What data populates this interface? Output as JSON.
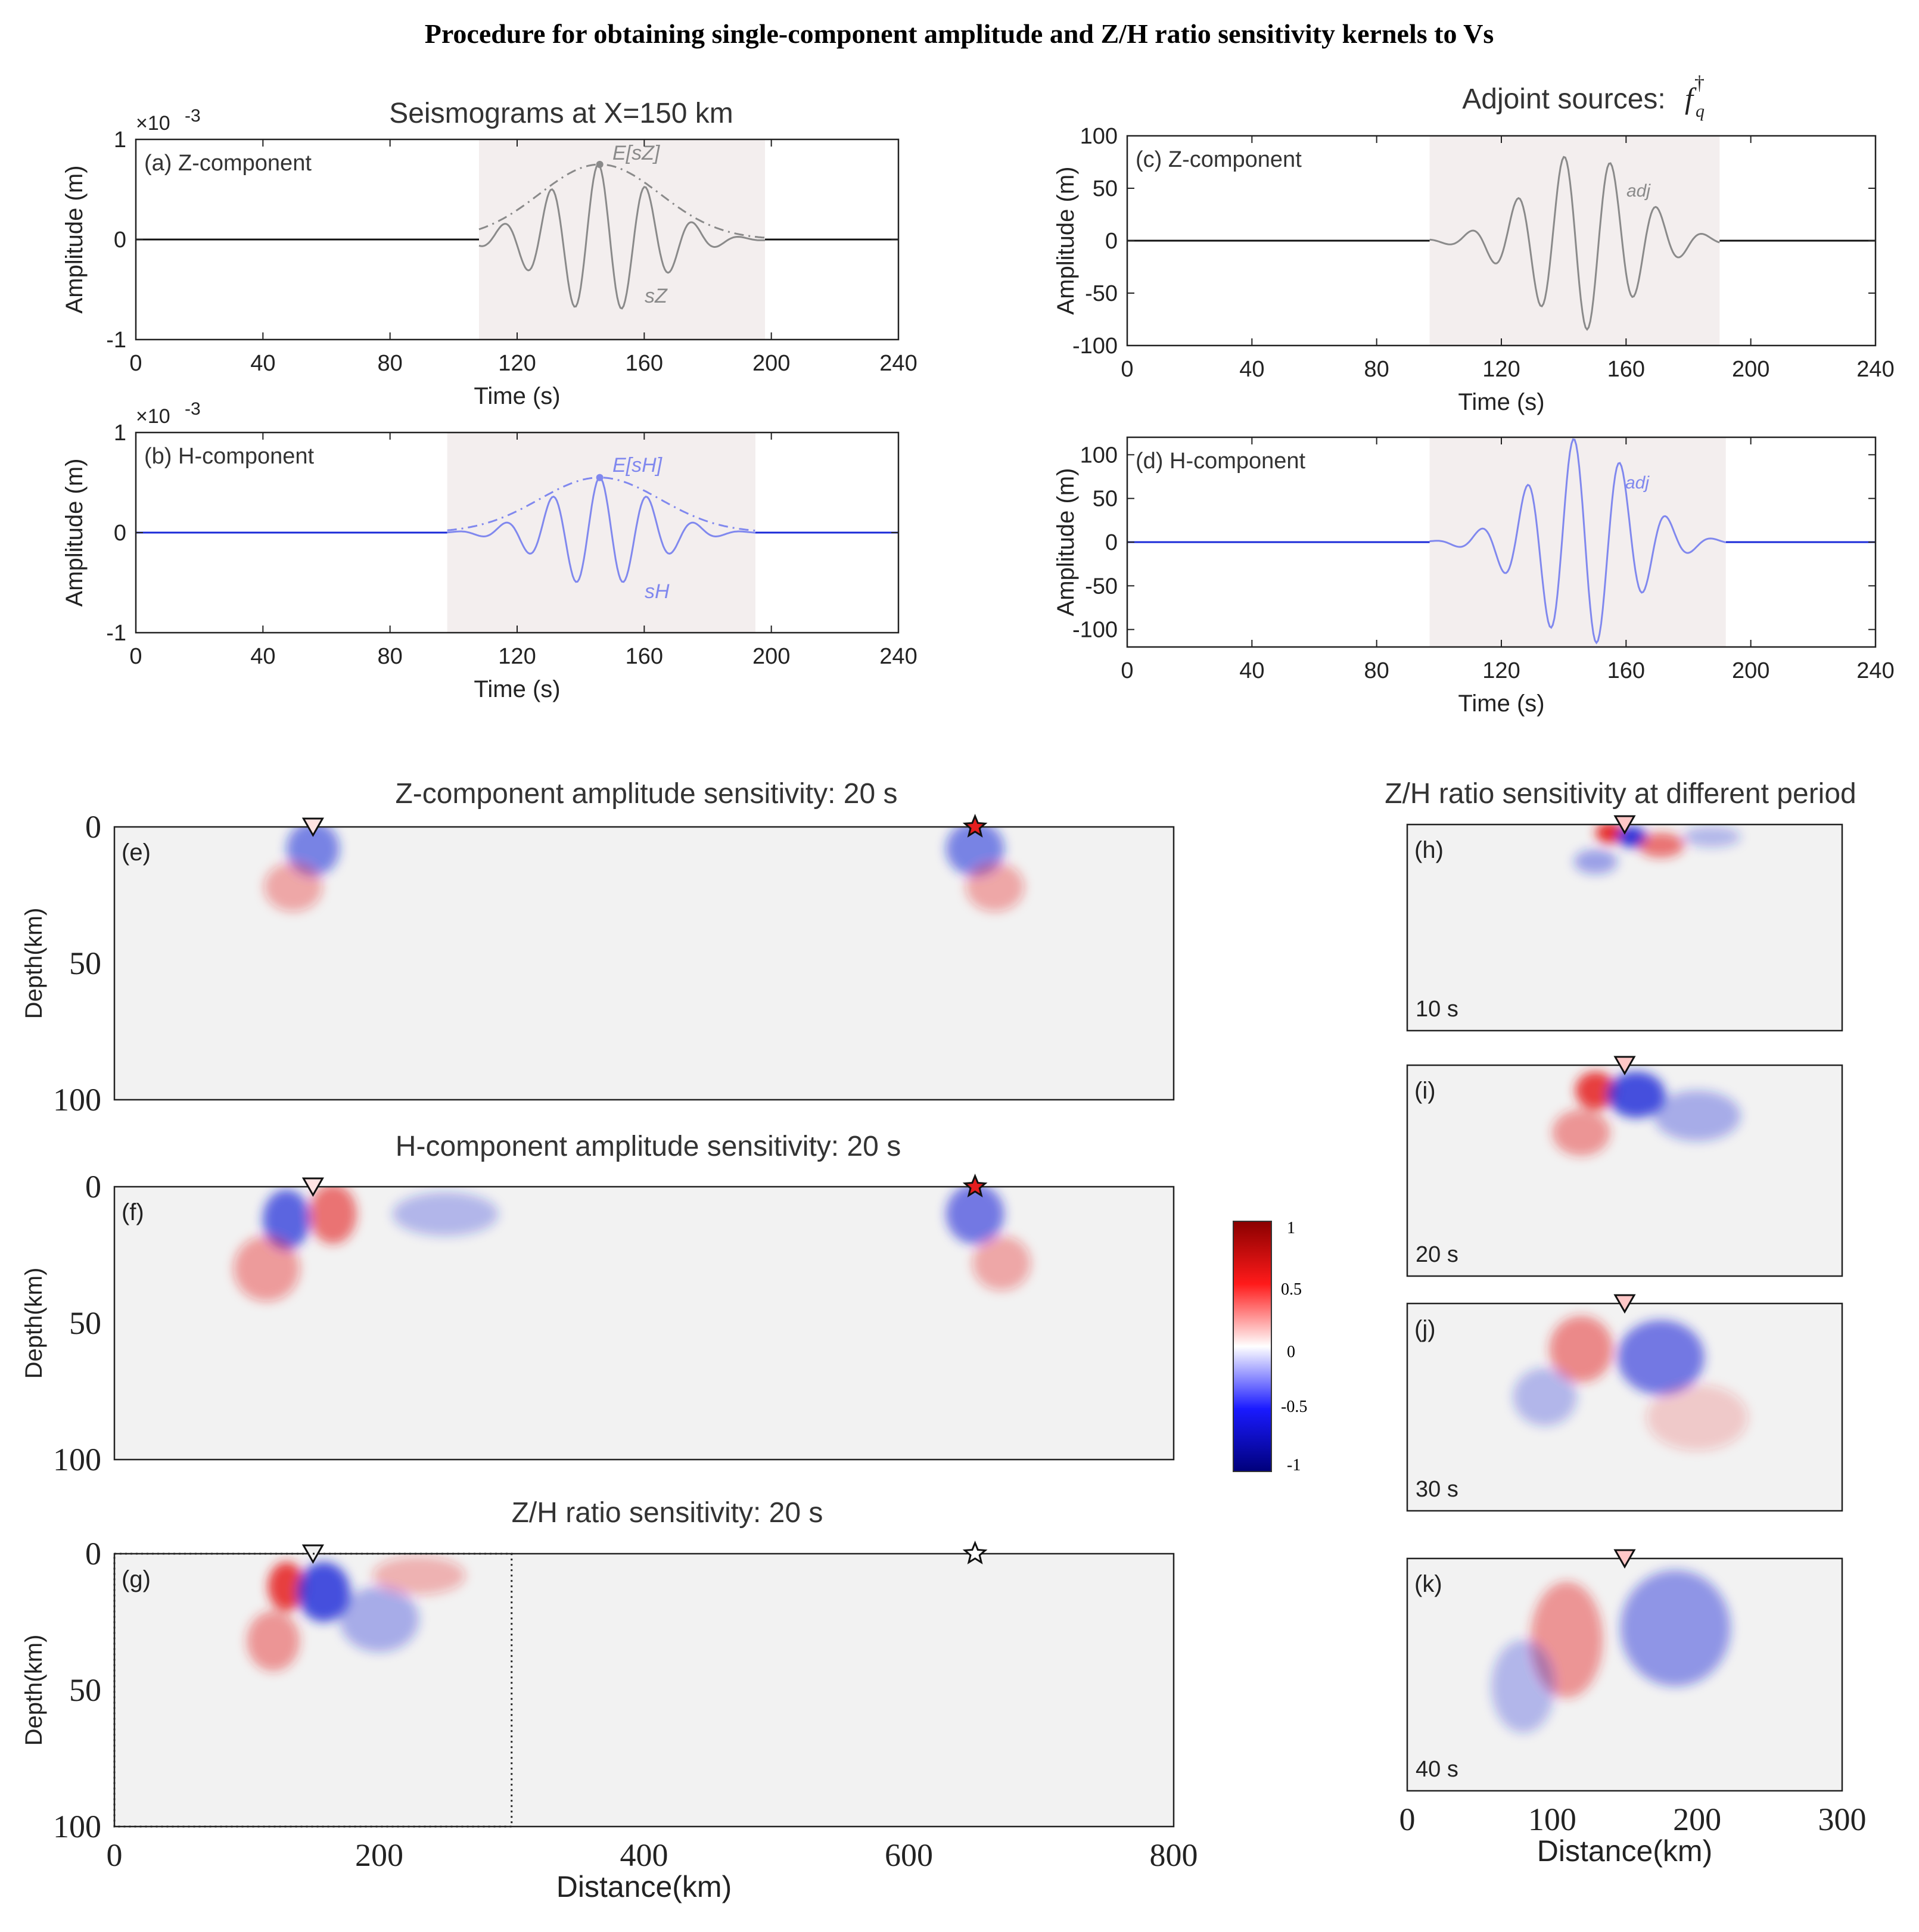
{
  "main_title": "Procedure for obtaining single-component amplitude and Z/H ratio sensitivity kernels to Vs",
  "colors": {
    "z_trace": "#8a8a8a",
    "h_trace": "#8088ee",
    "axis": "#222222",
    "window_shade": "#f3eeee",
    "neg": "#1a28d8",
    "pos": "#e51e1e",
    "kernel_bg": "#f2f2f2"
  },
  "seismograms": {
    "title": "Seismograms at X=150 km",
    "xlabel": "Time (s)",
    "ylabel": "Amplitude (m)",
    "exponent": "×10",
    "exponent_power": "-3",
    "xticks": [
      "0",
      "40",
      "80",
      "120",
      "160",
      "200",
      "240"
    ],
    "yticks": [
      "1",
      "0",
      "-1"
    ],
    "panel_a": {
      "label": "(a) Z-component",
      "env_label": "E[s",
      "env_sub": "Z",
      "trace_label": "s",
      "trace_sub": "Z"
    },
    "panel_b": {
      "label": "(b)  H-component",
      "env_label": "E[s",
      "env_sub": "H",
      "trace_label": "s",
      "trace_sub": "H"
    }
  },
  "adjoint": {
    "title": "Adjoint sources:",
    "title_symbol": "f",
    "title_sub": "q",
    "title_sup": "†",
    "xlabel": "Time (s)",
    "ylabel": "Amplitude (m)",
    "xticks": [
      "0",
      "40",
      "80",
      "120",
      "160",
      "200",
      "240"
    ],
    "panel_c": {
      "label": "(c) Z-component",
      "trace_label": "adj",
      "yticks": [
        "100",
        "50",
        "0",
        "-50",
        "-100"
      ]
    },
    "panel_d": {
      "label": "(d) H-component",
      "trace_label": "adj",
      "yticks": [
        "100",
        "50",
        "0",
        "-50",
        "-100"
      ]
    }
  },
  "kernels": {
    "title_e": "Z-component amplitude sensitivity: 20 s",
    "title_f": "H-component amplitude sensitivity: 20 s",
    "title_g": "Z/H ratio sensitivity: 20 s",
    "ylabel": "Depth(km)",
    "xlabel": "Distance(km)",
    "yticks": [
      "0",
      "50",
      "100"
    ],
    "xticks": [
      "0",
      "200",
      "400",
      "600",
      "800"
    ],
    "label_e": "(e)",
    "label_f": "(f)",
    "label_g": "(g)"
  },
  "colorbar": {
    "ticks": [
      "1",
      "0.5",
      "0",
      "-0.5",
      "-1"
    ]
  },
  "zh_periods": {
    "title": "Z/H ratio sensitivity at different period",
    "xlabel": "Distance(km)",
    "xticks": [
      "0",
      "100",
      "200",
      "300"
    ],
    "panels": [
      {
        "label": "(h)",
        "period": "10 s"
      },
      {
        "label": "(i)",
        "period": "20 s"
      },
      {
        "label": "(j)",
        "period": "30 s"
      },
      {
        "label": "(k)",
        "period": "40 s"
      }
    ]
  },
  "chart_data": [
    {
      "type": "line",
      "title": "Seismograms at X=150 km",
      "panel": "(a) Z-component",
      "xlabel": "Time (s)",
      "ylabel": "Amplitude (m)",
      "xlim": [
        0,
        240
      ],
      "ylim": [
        -1,
        1
      ],
      "y_scale": "1e-3",
      "series": [
        {
          "name": "s_Z",
          "model": "gaussian_wavelet",
          "center": 146,
          "sigma": 17,
          "amp": 0.75,
          "freq": 0.067,
          "phase": 0.2,
          "window": [
            108,
            198
          ]
        },
        {
          "name": "E[s_Z]",
          "model": "envelope",
          "center": 146,
          "sigma": 19,
          "amp": 0.75,
          "window": [
            108,
            198
          ]
        }
      ]
    },
    {
      "type": "line",
      "panel": "(b) H-component",
      "xlabel": "Time (s)",
      "ylabel": "Amplitude (m)",
      "xlim": [
        0,
        240
      ],
      "ylim": [
        -1,
        1
      ],
      "y_scale": "1e-3",
      "series": [
        {
          "name": "s_H",
          "model": "gaussian_wavelet",
          "center": 146,
          "sigma": 16,
          "amp": 0.55,
          "freq": 0.067,
          "phase": 0.0,
          "window": [
            98,
            195
          ]
        },
        {
          "name": "E[s_H]",
          "model": "envelope",
          "center": 146,
          "sigma": 19,
          "amp": 0.55,
          "window": [
            98,
            195
          ]
        }
      ]
    },
    {
      "type": "line",
      "title": "Adjoint sources",
      "panel": "(c) Z-component",
      "xlabel": "Time (s)",
      "ylabel": "Amplitude (m)",
      "xlim": [
        0,
        240
      ],
      "ylim": [
        -100,
        100
      ],
      "series": [
        {
          "name": "adj",
          "model": "gaussian_wavelet",
          "center": 146,
          "sigma": 17,
          "amp": 85,
          "freq": 0.067,
          "phase": 2.5,
          "window": [
            97,
            190
          ]
        }
      ]
    },
    {
      "type": "line",
      "panel": "(d) H-component",
      "xlabel": "Time (s)",
      "ylabel": "Amplitude (m)",
      "xlim": [
        0,
        240
      ],
      "ylim": [
        -120,
        120
      ],
      "series": [
        {
          "name": "adj",
          "model": "gaussian_wavelet",
          "center": 146,
          "sigma": 16,
          "amp": 120,
          "freq": 0.067,
          "phase": 1.2,
          "window": [
            97,
            192
          ]
        }
      ]
    },
    {
      "type": "heatmap",
      "panel": "(e)",
      "title": "Z-component amplitude sensitivity: 20 s",
      "xlim": [
        0,
        800
      ],
      "ylim": [
        0,
        100
      ],
      "receiver_km": 150,
      "source_km": 650,
      "colorscale": [
        -1,
        1
      ],
      "blobs": [
        [
          150,
          8,
          20,
          10,
          -0.55
        ],
        [
          135,
          22,
          22,
          9,
          0.35
        ],
        [
          650,
          8,
          22,
          10,
          -0.55
        ],
        [
          665,
          22,
          22,
          9,
          0.35
        ]
      ]
    },
    {
      "type": "heatmap",
      "panel": "(f)",
      "title": "H-component amplitude sensitivity: 20 s",
      "xlim": [
        0,
        800
      ],
      "ylim": [
        0,
        100
      ],
      "receiver_km": 150,
      "source_km": 650,
      "colorscale": [
        -1,
        1
      ],
      "blobs": [
        [
          130,
          12,
          18,
          11,
          -0.7
        ],
        [
          165,
          10,
          18,
          11,
          0.6
        ],
        [
          115,
          30,
          25,
          12,
          0.4
        ],
        [
          250,
          10,
          40,
          8,
          -0.3
        ],
        [
          650,
          10,
          22,
          11,
          -0.6
        ],
        [
          670,
          28,
          22,
          10,
          0.35
        ]
      ]
    },
    {
      "type": "heatmap",
      "panel": "(g)",
      "title": "Z/H ratio sensitivity: 20 s",
      "xlim": [
        0,
        800
      ],
      "ylim": [
        0,
        100
      ],
      "receiver_km": 150,
      "source_km": 650,
      "colorscale": [
        -1,
        1
      ],
      "blobs": [
        [
          130,
          12,
          14,
          9,
          0.85
        ],
        [
          158,
          14,
          20,
          11,
          -0.8
        ],
        [
          120,
          32,
          20,
          11,
          0.45
        ],
        [
          200,
          24,
          30,
          12,
          -0.35
        ],
        [
          230,
          8,
          35,
          7,
          0.3
        ]
      ]
    },
    {
      "type": "heatmap",
      "panel": "(h)",
      "period": "10 s",
      "xlim": [
        0,
        300
      ],
      "ylim": [
        0,
        100
      ],
      "blobs": [
        [
          140,
          4,
          10,
          5,
          0.95
        ],
        [
          155,
          6,
          10,
          5,
          -0.95
        ],
        [
          175,
          10,
          16,
          6,
          0.6
        ],
        [
          210,
          6,
          20,
          5,
          -0.3
        ],
        [
          130,
          18,
          15,
          6,
          -0.4
        ]
      ]
    },
    {
      "type": "heatmap",
      "panel": "(i)",
      "period": "20 s",
      "xlim": [
        0,
        300
      ],
      "ylim": [
        0,
        100
      ],
      "blobs": [
        [
          130,
          12,
          14,
          9,
          0.85
        ],
        [
          158,
          14,
          20,
          11,
          -0.8
        ],
        [
          120,
          32,
          20,
          11,
          0.45
        ],
        [
          200,
          24,
          30,
          12,
          -0.35
        ]
      ]
    },
    {
      "type": "heatmap",
      "panel": "(j)",
      "period": "30 s",
      "xlim": [
        0,
        300
      ],
      "ylim": [
        0,
        100
      ],
      "blobs": [
        [
          120,
          22,
          22,
          16,
          0.5
        ],
        [
          175,
          26,
          30,
          18,
          -0.6
        ],
        [
          95,
          45,
          22,
          14,
          -0.3
        ],
        [
          200,
          55,
          35,
          16,
          0.2
        ]
      ]
    },
    {
      "type": "heatmap",
      "panel": "(k)",
      "period": "40 s",
      "xlim": [
        0,
        300
      ],
      "ylim": [
        0,
        100
      ],
      "blobs": [
        [
          110,
          35,
          25,
          25,
          0.45
        ],
        [
          185,
          30,
          38,
          25,
          -0.45
        ],
        [
          80,
          55,
          22,
          20,
          -0.3
        ]
      ]
    }
  ]
}
